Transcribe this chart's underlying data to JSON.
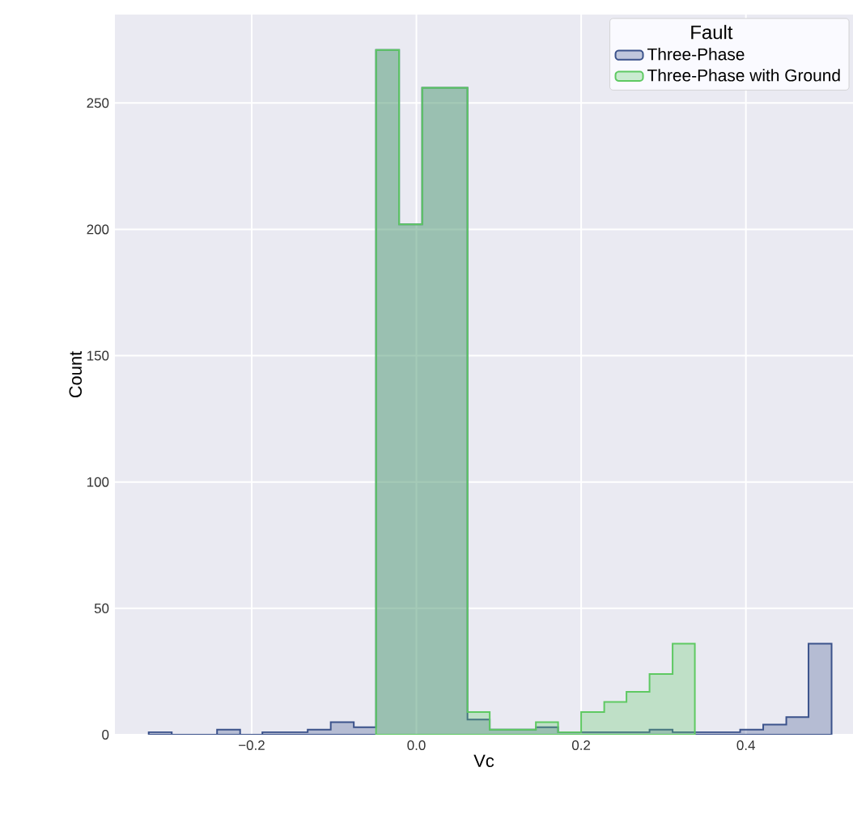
{
  "chart_data": {
    "type": "histogram",
    "xlabel": "Vc",
    "ylabel": "Count",
    "legend_title": "Fault",
    "bins": [
      -0.325,
      -0.297,
      -0.27,
      -0.242,
      -0.214,
      -0.187,
      -0.159,
      -0.132,
      -0.104,
      -0.076,
      -0.049,
      -0.021,
      0.007,
      0.034,
      0.062,
      0.089,
      0.117,
      0.145,
      0.172,
      0.2,
      0.228,
      0.255,
      0.283,
      0.311,
      0.338,
      0.366,
      0.393,
      0.421,
      0.449,
      0.476,
      0.504
    ],
    "series": [
      {
        "name": "Three-Phase",
        "color": "#3b528b",
        "values": [
          1,
          0,
          0,
          2,
          0,
          1,
          1,
          2,
          5,
          3,
          271,
          202,
          256,
          256,
          6,
          2,
          2,
          3,
          1,
          1,
          1,
          1,
          2,
          1,
          1,
          1,
          2,
          4,
          7,
          36
        ]
      },
      {
        "name": "Three-Phase with Ground",
        "color": "#5ec962",
        "bins": [
          -0.049,
          -0.021,
          0.007,
          0.034,
          0.062,
          0.089,
          0.117,
          0.145,
          0.172,
          0.2,
          0.228,
          0.255,
          0.283,
          0.311,
          0.338
        ],
        "values": [
          271,
          202,
          256,
          256,
          9,
          2,
          2,
          5,
          1,
          9,
          13,
          17,
          24,
          36
        ]
      }
    ],
    "xlim": [
      -0.366,
      0.53
    ],
    "ylim": [
      0,
      285
    ],
    "xticks": [
      {
        "value": -0.2,
        "label": "−0.2"
      },
      {
        "value": 0,
        "label": "0.0"
      },
      {
        "value": 0.2,
        "label": "0.2"
      },
      {
        "value": 0.4,
        "label": "0.4"
      }
    ],
    "yticks": [
      0,
      50,
      100,
      150,
      200,
      250
    ],
    "grid": true,
    "legend": "top right"
  }
}
